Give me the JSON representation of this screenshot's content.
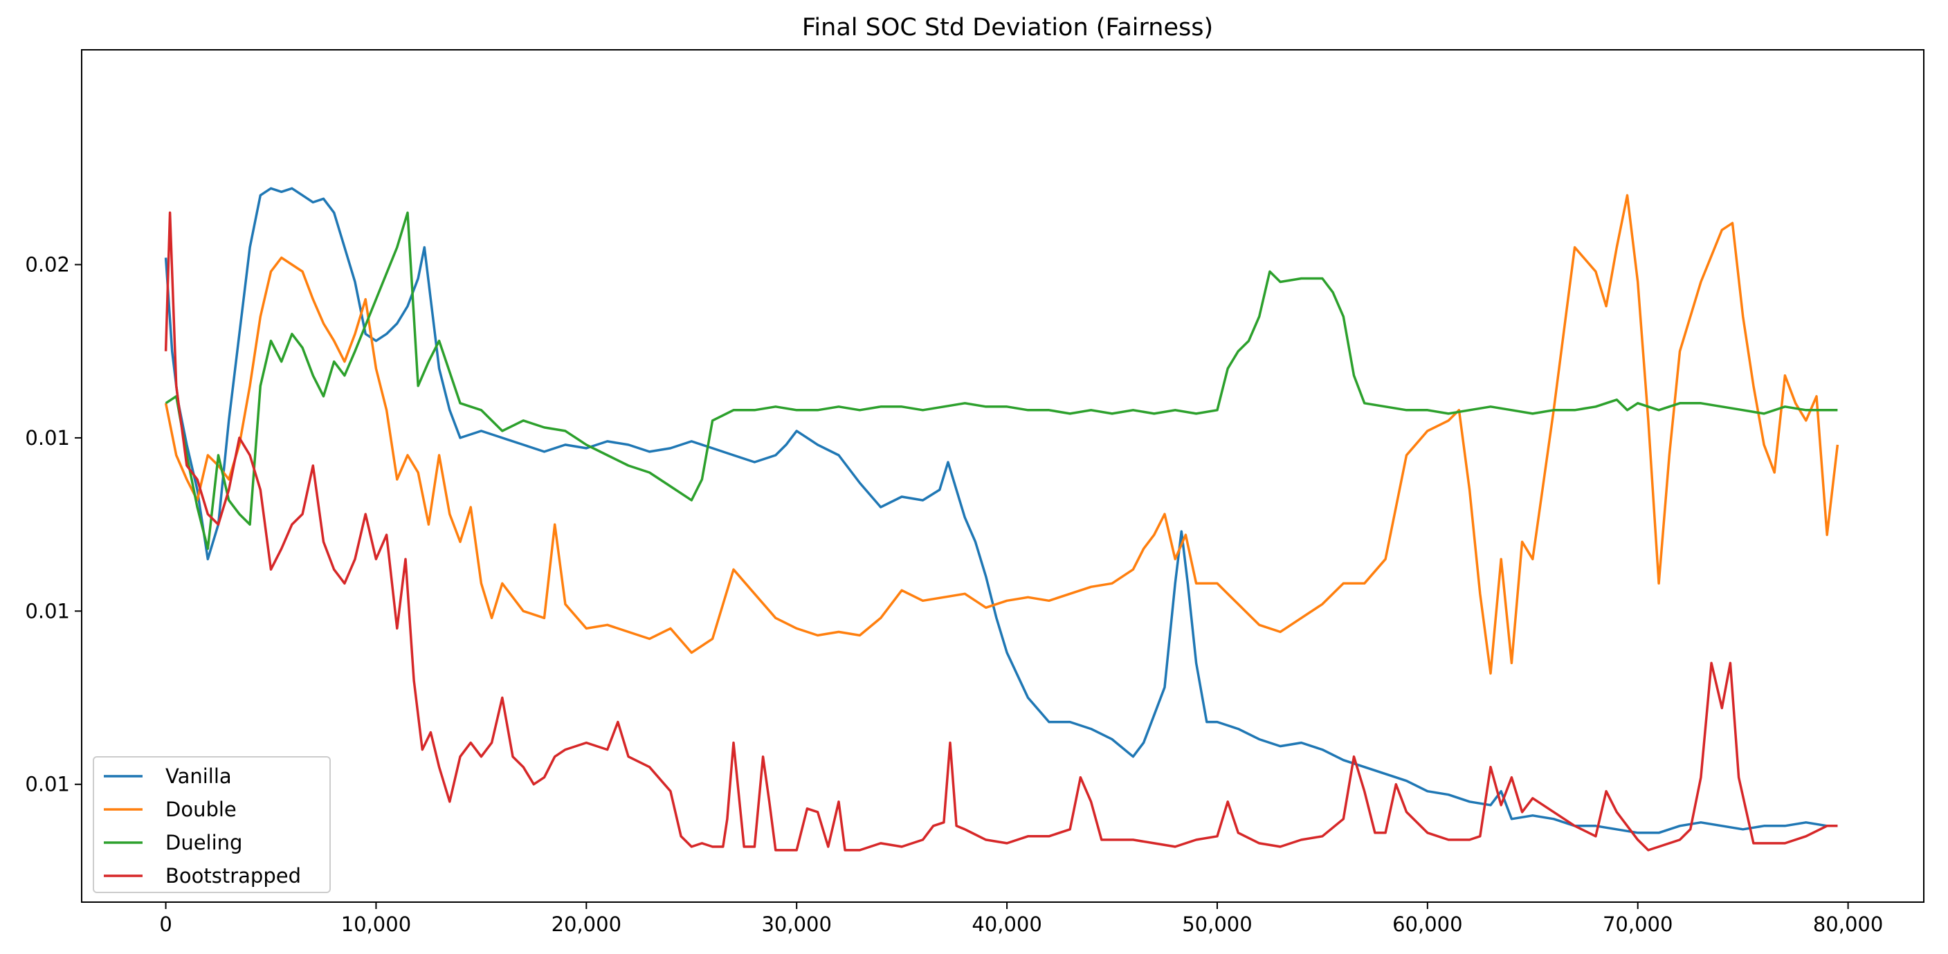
{
  "chart_data": {
    "type": "line",
    "title": "Final SOC Std Deviation (Fairness)",
    "xlabel": "",
    "ylabel": "",
    "xlim": [
      -4000,
      83600
    ],
    "ylim": [
      0.0016,
      0.0262
    ],
    "x_ticks": [
      0,
      10000,
      20000,
      30000,
      40000,
      50000,
      60000,
      70000,
      80000
    ],
    "x_tick_labels": [
      "0",
      "10,000",
      "20,000",
      "30,000",
      "40,000",
      "50,000",
      "60,000",
      "70,000",
      "80,000"
    ],
    "y_ticks": [
      0.005,
      0.01,
      0.015,
      0.02
    ],
    "y_tick_labels": [
      "0.01",
      "0.01",
      "0.01",
      "0.02"
    ],
    "legend_position": "lower-left",
    "series": [
      {
        "name": "Vanilla",
        "color": "#1f77b4",
        "x": [
          0,
          300,
          600,
          1000,
          1500,
          2000,
          2500,
          3000,
          3500,
          4000,
          4500,
          5000,
          5500,
          6000,
          6500,
          7000,
          7500,
          8000,
          8500,
          9000,
          9500,
          10000,
          10500,
          11000,
          11500,
          12000,
          12300,
          12600,
          13000,
          13500,
          14000,
          15000,
          16000,
          17000,
          18000,
          19000,
          20000,
          21000,
          22000,
          23000,
          24000,
          25000,
          26000,
          27000,
          28000,
          29000,
          29500,
          30000,
          31000,
          32000,
          33000,
          34000,
          35000,
          36000,
          36800,
          37200,
          37600,
          38000,
          38500,
          39000,
          39500,
          40000,
          41000,
          42000,
          43000,
          44000,
          45000,
          46000,
          46500,
          47000,
          47500,
          48000,
          48300,
          48600,
          49000,
          49500,
          50000,
          51000,
          52000,
          53000,
          54000,
          55000,
          56000,
          57000,
          58000,
          59000,
          60000,
          61000,
          62000,
          63000,
          63500,
          64000,
          65000,
          66000,
          67000,
          68000,
          69000,
          70000,
          71000,
          72000,
          73000,
          74000,
          75000,
          76000,
          77000,
          78000,
          79000,
          79500
        ],
        "y": [
          0.0202,
          0.0175,
          0.016,
          0.0148,
          0.0135,
          0.0115,
          0.0125,
          0.0155,
          0.018,
          0.0205,
          0.022,
          0.0222,
          0.0221,
          0.0222,
          0.022,
          0.0218,
          0.0219,
          0.0215,
          0.0205,
          0.0195,
          0.018,
          0.0178,
          0.018,
          0.0183,
          0.0188,
          0.0196,
          0.0205,
          0.019,
          0.017,
          0.0158,
          0.015,
          0.0152,
          0.015,
          0.0148,
          0.0146,
          0.0148,
          0.0147,
          0.0149,
          0.0148,
          0.0146,
          0.0147,
          0.0149,
          0.0147,
          0.0145,
          0.0143,
          0.0145,
          0.0148,
          0.0152,
          0.0148,
          0.0145,
          0.0137,
          0.013,
          0.0133,
          0.0132,
          0.0135,
          0.0143,
          0.0135,
          0.0127,
          0.012,
          0.011,
          0.0098,
          0.0088,
          0.0075,
          0.0068,
          0.0068,
          0.0066,
          0.0063,
          0.0058,
          0.0062,
          0.007,
          0.0078,
          0.0108,
          0.0123,
          0.0108,
          0.0085,
          0.0068,
          0.0068,
          0.0066,
          0.0063,
          0.0061,
          0.0062,
          0.006,
          0.0057,
          0.0055,
          0.0053,
          0.0051,
          0.0048,
          0.0047,
          0.0045,
          0.0044,
          0.0048,
          0.004,
          0.0041,
          0.004,
          0.0038,
          0.0038,
          0.0037,
          0.0036,
          0.0036,
          0.0038,
          0.0039,
          0.0038,
          0.0037,
          0.0038,
          0.0038,
          0.0039,
          0.0038,
          0.0038
        ]
      },
      {
        "name": "Double",
        "color": "#ff7f0e",
        "x": [
          0,
          500,
          1000,
          1500,
          2000,
          2500,
          3000,
          3500,
          4000,
          4500,
          5000,
          5500,
          6000,
          6500,
          7000,
          7500,
          8000,
          8500,
          9000,
          9500,
          10000,
          10500,
          11000,
          11500,
          12000,
          12500,
          13000,
          13500,
          14000,
          14500,
          15000,
          15500,
          16000,
          17000,
          18000,
          18500,
          19000,
          20000,
          21000,
          22000,
          23000,
          24000,
          25000,
          26000,
          27000,
          28000,
          29000,
          30000,
          31000,
          32000,
          33000,
          34000,
          35000,
          36000,
          37000,
          38000,
          39000,
          40000,
          41000,
          42000,
          43000,
          44000,
          45000,
          46000,
          46500,
          47000,
          47500,
          48000,
          48500,
          49000,
          50000,
          51000,
          52000,
          53000,
          54000,
          55000,
          56000,
          57000,
          58000,
          59000,
          60000,
          61000,
          61500,
          62000,
          62500,
          63000,
          63500,
          64000,
          64500,
          65000,
          66000,
          67000,
          68000,
          68500,
          69000,
          69500,
          70000,
          70500,
          71000,
          71500,
          72000,
          73000,
          74000,
          74500,
          75000,
          75500,
          76000,
          76500,
          77000,
          77500,
          78000,
          78500,
          79000,
          79500
        ],
        "y": [
          0.016,
          0.0145,
          0.0138,
          0.0132,
          0.0145,
          0.0142,
          0.0138,
          0.0148,
          0.0165,
          0.0185,
          0.0198,
          0.0202,
          0.02,
          0.0198,
          0.019,
          0.0183,
          0.0178,
          0.0172,
          0.018,
          0.019,
          0.017,
          0.0158,
          0.0138,
          0.0145,
          0.014,
          0.0125,
          0.0145,
          0.0128,
          0.012,
          0.013,
          0.0108,
          0.0098,
          0.0108,
          0.01,
          0.0098,
          0.0125,
          0.0102,
          0.0095,
          0.0096,
          0.0094,
          0.0092,
          0.0095,
          0.0088,
          0.0092,
          0.0112,
          0.0105,
          0.0098,
          0.0095,
          0.0093,
          0.0094,
          0.0093,
          0.0098,
          0.0106,
          0.0103,
          0.0104,
          0.0105,
          0.0101,
          0.0103,
          0.0104,
          0.0103,
          0.0105,
          0.0107,
          0.0108,
          0.0112,
          0.0118,
          0.0122,
          0.0128,
          0.0115,
          0.0122,
          0.0108,
          0.0108,
          0.0102,
          0.0096,
          0.0094,
          0.0098,
          0.0102,
          0.0108,
          0.0108,
          0.0115,
          0.0145,
          0.0152,
          0.0155,
          0.0158,
          0.0135,
          0.0105,
          0.0082,
          0.0115,
          0.0085,
          0.012,
          0.0115,
          0.0158,
          0.0205,
          0.0198,
          0.0188,
          0.0205,
          0.022,
          0.0195,
          0.0155,
          0.0108,
          0.0145,
          0.0175,
          0.0195,
          0.021,
          0.0212,
          0.0185,
          0.0165,
          0.0148,
          0.014,
          0.0168,
          0.016,
          0.0155,
          0.0162,
          0.0122,
          0.0148
        ]
      },
      {
        "name": "Dueling",
        "color": "#2ca02c",
        "x": [
          0,
          500,
          1000,
          1500,
          2000,
          2500,
          3000,
          3500,
          4000,
          4500,
          5000,
          5500,
          6000,
          6500,
          7000,
          7500,
          8000,
          8500,
          9000,
          10000,
          11000,
          11500,
          12000,
          12500,
          13000,
          14000,
          15000,
          16000,
          17000,
          18000,
          19000,
          20000,
          21000,
          22000,
          23000,
          24000,
          25000,
          25500,
          26000,
          27000,
          28000,
          29000,
          30000,
          31000,
          32000,
          33000,
          34000,
          35000,
          36000,
          37000,
          38000,
          39000,
          40000,
          41000,
          42000,
          43000,
          44000,
          45000,
          46000,
          47000,
          48000,
          49000,
          50000,
          50500,
          51000,
          51500,
          52000,
          52500,
          53000,
          54000,
          55000,
          55500,
          56000,
          56500,
          57000,
          58000,
          59000,
          60000,
          61000,
          62000,
          63000,
          64000,
          65000,
          66000,
          67000,
          68000,
          69000,
          69500,
          70000,
          71000,
          72000,
          73000,
          74000,
          75000,
          76000,
          77000,
          78000,
          79000,
          79500
        ],
        "y": [
          0.016,
          0.0162,
          0.0145,
          0.013,
          0.0118,
          0.0145,
          0.0132,
          0.0128,
          0.0125,
          0.0165,
          0.0178,
          0.0172,
          0.018,
          0.0176,
          0.0168,
          0.0162,
          0.0172,
          0.0168,
          0.0175,
          0.019,
          0.0205,
          0.0215,
          0.0165,
          0.0172,
          0.0178,
          0.016,
          0.0158,
          0.0152,
          0.0155,
          0.0153,
          0.0152,
          0.0148,
          0.0145,
          0.0142,
          0.014,
          0.0136,
          0.0132,
          0.0138,
          0.0155,
          0.0158,
          0.0158,
          0.0159,
          0.0158,
          0.0158,
          0.0159,
          0.0158,
          0.0159,
          0.0159,
          0.0158,
          0.0159,
          0.016,
          0.0159,
          0.0159,
          0.0158,
          0.0158,
          0.0157,
          0.0158,
          0.0157,
          0.0158,
          0.0157,
          0.0158,
          0.0157,
          0.0158,
          0.017,
          0.0175,
          0.0178,
          0.0185,
          0.0198,
          0.0195,
          0.0196,
          0.0196,
          0.0192,
          0.0185,
          0.0168,
          0.016,
          0.0159,
          0.0158,
          0.0158,
          0.0157,
          0.0158,
          0.0159,
          0.0158,
          0.0157,
          0.0158,
          0.0158,
          0.0159,
          0.0161,
          0.0158,
          0.016,
          0.0158,
          0.016,
          0.016,
          0.0159,
          0.0158,
          0.0157,
          0.0159,
          0.0158,
          0.0158,
          0.0158
        ]
      },
      {
        "name": "Bootstrapped",
        "color": "#d62728",
        "x": [
          0,
          200,
          500,
          1000,
          1500,
          2000,
          2500,
          3000,
          3500,
          4000,
          4500,
          5000,
          5500,
          6000,
          6500,
          7000,
          7500,
          8000,
          8500,
          9000,
          9500,
          10000,
          10500,
          11000,
          11400,
          11800,
          12200,
          12600,
          13000,
          13500,
          14000,
          14500,
          15000,
          15500,
          16000,
          16500,
          17000,
          17500,
          18000,
          18500,
          19000,
          20000,
          21000,
          21500,
          22000,
          23000,
          24000,
          24500,
          25000,
          25500,
          26000,
          26500,
          26700,
          27000,
          27500,
          28000,
          28400,
          28700,
          29000,
          29500,
          30000,
          30500,
          31000,
          31500,
          32000,
          32300,
          32600,
          33000,
          34000,
          35000,
          36000,
          36500,
          37000,
          37300,
          37600,
          38000,
          39000,
          40000,
          41000,
          42000,
          43000,
          43500,
          44000,
          44500,
          45000,
          46000,
          47000,
          48000,
          49000,
          50000,
          50500,
          51000,
          52000,
          53000,
          54000,
          55000,
          56000,
          56500,
          57000,
          57500,
          58000,
          58500,
          59000,
          60000,
          61000,
          62000,
          62500,
          63000,
          63500,
          64000,
          64500,
          65000,
          66000,
          67000,
          68000,
          68500,
          69000,
          70000,
          70500,
          71000,
          72000,
          72500,
          73000,
          73500,
          74000,
          74400,
          74800,
          75500,
          76000,
          77000,
          78000,
          79000,
          79500
        ],
        "y": [
          0.0175,
          0.0215,
          0.0165,
          0.0142,
          0.0138,
          0.0128,
          0.0125,
          0.0135,
          0.015,
          0.0145,
          0.0135,
          0.0112,
          0.0118,
          0.0125,
          0.0128,
          0.0142,
          0.012,
          0.0112,
          0.0108,
          0.0115,
          0.0128,
          0.0115,
          0.0122,
          0.0095,
          0.0115,
          0.008,
          0.006,
          0.0065,
          0.0055,
          0.0045,
          0.0058,
          0.0062,
          0.0058,
          0.0062,
          0.0075,
          0.0058,
          0.0055,
          0.005,
          0.0052,
          0.0058,
          0.006,
          0.0062,
          0.006,
          0.0068,
          0.0058,
          0.0055,
          0.0048,
          0.0035,
          0.0032,
          0.0033,
          0.0032,
          0.0032,
          0.004,
          0.0062,
          0.0032,
          0.0032,
          0.0058,
          0.0045,
          0.0031,
          0.0031,
          0.0031,
          0.0043,
          0.0042,
          0.0032,
          0.0045,
          0.0031,
          0.0031,
          0.0031,
          0.0033,
          0.0032,
          0.0034,
          0.0038,
          0.0039,
          0.0062,
          0.0038,
          0.0037,
          0.0034,
          0.0033,
          0.0035,
          0.0035,
          0.0037,
          0.0052,
          0.0045,
          0.0034,
          0.0034,
          0.0034,
          0.0033,
          0.0032,
          0.0034,
          0.0035,
          0.0045,
          0.0036,
          0.0033,
          0.0032,
          0.0034,
          0.0035,
          0.004,
          0.0058,
          0.0048,
          0.0036,
          0.0036,
          0.005,
          0.0042,
          0.0036,
          0.0034,
          0.0034,
          0.0035,
          0.0055,
          0.0044,
          0.0052,
          0.0042,
          0.0046,
          0.0042,
          0.0038,
          0.0035,
          0.0048,
          0.0042,
          0.0034,
          0.0031,
          0.0032,
          0.0034,
          0.0037,
          0.0052,
          0.0085,
          0.0072,
          0.0085,
          0.0052,
          0.0033,
          0.0033,
          0.0033,
          0.0035,
          0.0038,
          0.0038
        ]
      }
    ]
  }
}
